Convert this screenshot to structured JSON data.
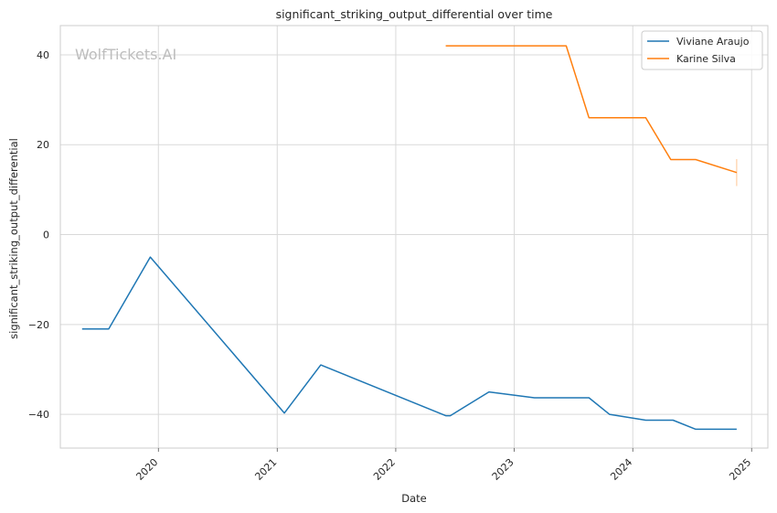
{
  "watermark": "WolfTickets.AI",
  "chart_data": {
    "type": "line",
    "title": "significant_striking_output_differential over time",
    "xlabel": "Date",
    "ylabel": "significant_striking_output_differential",
    "xlim": [
      "2019-03-05",
      "2025-02-20"
    ],
    "ylim": [
      -47.5,
      46.5
    ],
    "x_ticks": [
      "2020",
      "2021",
      "2022",
      "2023",
      "2024",
      "2025"
    ],
    "y_ticks": [
      40,
      20,
      0,
      -20,
      -40
    ],
    "grid": true,
    "legend_position": "top-right",
    "series": [
      {
        "name": "Viviane Araujo",
        "color": "#1f77b4",
        "points": [
          {
            "x": "2019-05-11",
            "y": -21
          },
          {
            "x": "2019-08-01",
            "y": -21
          },
          {
            "x": "2019-12-07",
            "y": -5
          },
          {
            "x": "2021-01-23",
            "y": -39.7
          },
          {
            "x": "2021-05-15",
            "y": -29
          },
          {
            "x": "2022-06-04",
            "y": -40.3
          },
          {
            "x": "2022-06-18",
            "y": -40.3
          },
          {
            "x": "2022-10-15",
            "y": -35
          },
          {
            "x": "2023-03-04",
            "y": -36.3
          },
          {
            "x": "2023-08-19",
            "y": -36.3
          },
          {
            "x": "2023-10-21",
            "y": -40
          },
          {
            "x": "2024-02-10",
            "y": -41.3
          },
          {
            "x": "2024-05-04",
            "y": -41.3
          },
          {
            "x": "2024-07-13",
            "y": -43.3
          },
          {
            "x": "2024-11-16",
            "y": -43.3
          }
        ]
      },
      {
        "name": "Karine Silva",
        "color": "#ff7f0e",
        "points": [
          {
            "x": "2022-06-04",
            "y": 42
          },
          {
            "x": "2023-06-10",
            "y": 42
          },
          {
            "x": "2023-08-19",
            "y": 26
          },
          {
            "x": "2024-02-10",
            "y": 26
          },
          {
            "x": "2024-04-27",
            "y": 16.7
          },
          {
            "x": "2024-07-13",
            "y": 16.7
          },
          {
            "x": "2024-11-16",
            "y": 13.8
          }
        ],
        "error_bar": {
          "x": "2024-11-16",
          "low": 10.8,
          "high": 16.8
        }
      }
    ]
  }
}
